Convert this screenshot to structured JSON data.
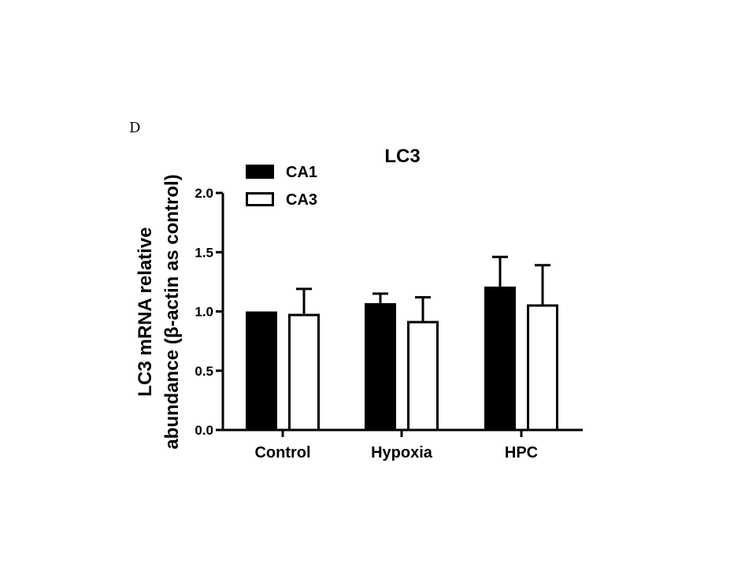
{
  "panel_letter": "D",
  "chart_data": {
    "type": "bar",
    "title": "LC3",
    "ylabel_lines": [
      "LC3 mRNA relative",
      "abundance (β-actin as control)"
    ],
    "xlabel": "",
    "categories": [
      "Control",
      "Hypoxia",
      "HPC"
    ],
    "series": [
      {
        "name": "CA1",
        "color": "#000000",
        "fill": "solid",
        "values": [
          1.0,
          1.07,
          1.21
        ],
        "errors": [
          0.0,
          0.08,
          0.25
        ]
      },
      {
        "name": "CA3",
        "color": "#000000",
        "fill": "open",
        "values": [
          0.98,
          0.92,
          1.06
        ],
        "errors": [
          0.21,
          0.2,
          0.33
        ]
      }
    ],
    "ylim": [
      0,
      2.0
    ],
    "yticks": [
      "0.0",
      "0.5",
      "1.0",
      "1.5",
      "2.0"
    ],
    "legend_position": "top-left",
    "grid": false
  }
}
